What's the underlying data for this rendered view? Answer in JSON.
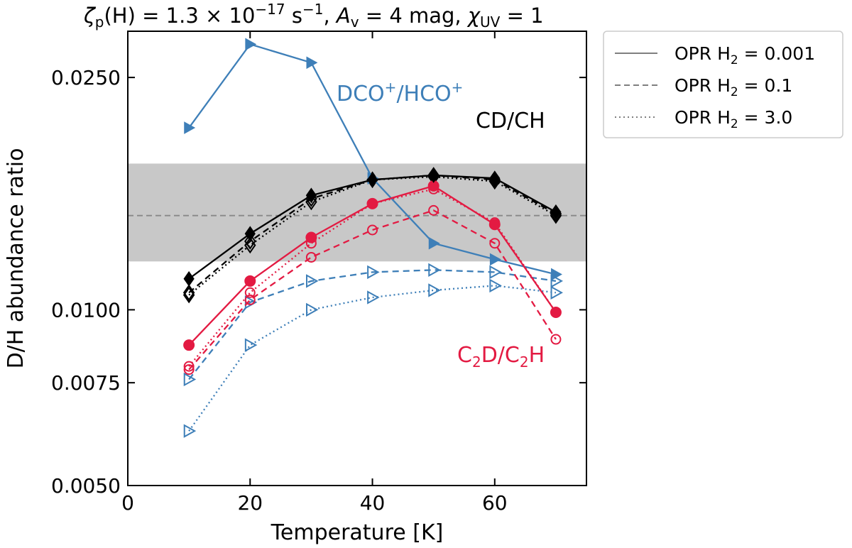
{
  "chart_data": {
    "type": "line",
    "title": "ζp(H) = 1.3 × 10⁻¹⁷ s⁻¹,  Av = 4 mag,  χUV = 1",
    "title_parts": {
      "zeta": "ζ",
      "zeta_sub": "p",
      "zeta_arg": "(H) = 1.3 × 10",
      "zeta_exp": "−17",
      "zeta_unit": " s",
      "zeta_unit_exp": "−1",
      "av": "A",
      "av_sub": "v",
      "av_val": " = 4 mag,",
      "chi": "χ",
      "chi_sub": "UV",
      "chi_val": " = 1"
    },
    "xlabel": "Temperature [K]",
    "ylabel": "D/H abundance ratio",
    "xlim": [
      0,
      75
    ],
    "ylim": [
      0.005,
      0.03
    ],
    "yscale": "log",
    "xticks": [
      0,
      20,
      40,
      60
    ],
    "xtick_labels": [
      "0",
      "20",
      "40",
      "60"
    ],
    "yticks": [
      0.005,
      0.0075,
      0.01,
      0.025
    ],
    "ytick_labels": [
      "0.0050",
      "0.0075",
      "0.0100",
      "0.0250"
    ],
    "shaded_band": {
      "y_low": 0.0121,
      "y_high": 0.0178,
      "color": "#c8c8c8"
    },
    "reference_line": {
      "y": 0.0145,
      "style": "dashed",
      "color": "#888888"
    },
    "colors": {
      "DCO": "#3e7fb8",
      "C2D": "#e31a42",
      "CD": "#000000"
    },
    "x": [
      10,
      20,
      30,
      40,
      50,
      60,
      70
    ],
    "series": [
      {
        "name": "DCO+/HCO+ OPR 0.001",
        "molecule": "DCO",
        "opr": "0.001",
        "marker": "triangle-right",
        "filled": true,
        "style": "solid",
        "values": [
          0.0205,
          0.0285,
          0.0265,
          0.0168,
          0.013,
          0.0122,
          0.0115
        ]
      },
      {
        "name": "DCO+/HCO+ OPR 0.1",
        "molecule": "DCO",
        "opr": "0.1",
        "marker": "triangle-right",
        "filled": false,
        "style": "dashed",
        "values": [
          0.0076,
          0.0103,
          0.0112,
          0.0116,
          0.0117,
          0.0116,
          0.0112
        ]
      },
      {
        "name": "DCO+/HCO+ OPR 3.0",
        "molecule": "DCO",
        "opr": "3.0",
        "marker": "triangle-right",
        "filled": false,
        "style": "dotted",
        "values": [
          0.0062,
          0.0087,
          0.01,
          0.0105,
          0.0108,
          0.011,
          0.0107
        ]
      },
      {
        "name": "C2D/C2H OPR 0.001",
        "molecule": "C2D",
        "opr": "0.001",
        "marker": "circle",
        "filled": true,
        "style": "solid",
        "values": [
          0.0087,
          0.0112,
          0.0133,
          0.0152,
          0.0163,
          0.014,
          0.0099
        ]
      },
      {
        "name": "C2D/C2H OPR 0.1",
        "molecule": "C2D",
        "opr": "0.1",
        "marker": "circle",
        "filled": false,
        "style": "dashed",
        "values": [
          0.0079,
          0.0104,
          0.0123,
          0.0137,
          0.0148,
          0.013,
          0.0089
        ]
      },
      {
        "name": "C2D/C2H OPR 3.0",
        "molecule": "C2D",
        "opr": "3.0",
        "marker": "circle",
        "filled": false,
        "style": "dotted",
        "values": [
          0.008,
          0.0107,
          0.013,
          0.0152,
          0.0161,
          0.0141,
          0.0099
        ]
      },
      {
        "name": "CD/CH OPR 0.001",
        "molecule": "CD",
        "opr": "0.001",
        "marker": "diamond",
        "filled": true,
        "style": "solid",
        "values": [
          0.0113,
          0.0135,
          0.0157,
          0.0167,
          0.017,
          0.0168,
          0.0147
        ]
      },
      {
        "name": "CD/CH OPR 0.1",
        "molecule": "CD",
        "opr": "0.1",
        "marker": "diamond",
        "filled": false,
        "style": "dashed",
        "values": [
          0.0107,
          0.0131,
          0.0155,
          0.0167,
          0.017,
          0.0167,
          0.0146
        ]
      },
      {
        "name": "CD/CH OPR 3.0",
        "molecule": "CD",
        "opr": "3.0",
        "marker": "diamond",
        "filled": false,
        "style": "dotted",
        "values": [
          0.0106,
          0.0129,
          0.0153,
          0.0167,
          0.0169,
          0.0166,
          0.0145
        ]
      }
    ],
    "annotations": [
      {
        "id": "DCO",
        "text": "DCO+/HCO+",
        "parts": [
          "DCO",
          "+",
          "/HCO",
          "+"
        ],
        "color": "#3e7fb8"
      },
      {
        "id": "CD",
        "text": "CD/CH",
        "parts": [
          "CD/CH"
        ],
        "color": "#000000"
      },
      {
        "id": "C2D",
        "text": "C2D/C2H",
        "parts": [
          "C",
          "2",
          "D/C",
          "2",
          "H"
        ],
        "color": "#e31a42"
      }
    ],
    "legend": {
      "position": "outside-right-top",
      "entries": [
        {
          "prefix": "OPR H",
          "sub": "2",
          "suffix": " = 0.001",
          "style": "solid"
        },
        {
          "prefix": "OPR H",
          "sub": "2",
          "suffix": " = 0.1",
          "style": "dashed"
        },
        {
          "prefix": "OPR H",
          "sub": "2",
          "suffix": " = 3.0",
          "style": "dotted"
        }
      ]
    }
  }
}
